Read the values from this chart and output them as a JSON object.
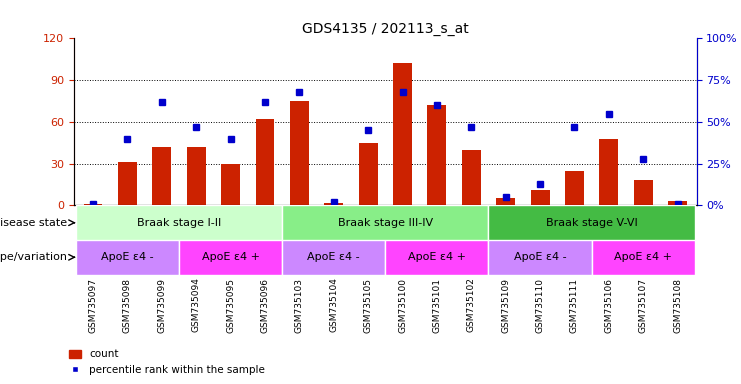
{
  "title": "GDS4135 / 202113_s_at",
  "samples": [
    "GSM735097",
    "GSM735098",
    "GSM735099",
    "GSM735094",
    "GSM735095",
    "GSM735096",
    "GSM735103",
    "GSM735104",
    "GSM735105",
    "GSM735100",
    "GSM735101",
    "GSM735102",
    "GSM735109",
    "GSM735110",
    "GSM735111",
    "GSM735106",
    "GSM735107",
    "GSM735108"
  ],
  "counts": [
    1,
    31,
    42,
    42,
    30,
    62,
    75,
    2,
    45,
    102,
    72,
    40,
    5,
    11,
    25,
    48,
    18,
    3
  ],
  "percentile": [
    1,
    40,
    62,
    47,
    40,
    62,
    68,
    2,
    45,
    68,
    60,
    47,
    5,
    13,
    47,
    55,
    28,
    1
  ],
  "ylim_left": [
    0,
    120
  ],
  "ylim_right": [
    0,
    100
  ],
  "yticks_left": [
    0,
    30,
    60,
    90,
    120
  ],
  "yticks_right": [
    0,
    25,
    50,
    75,
    100
  ],
  "bar_color": "#cc2200",
  "marker_color": "#0000cc",
  "disease_state_label": "disease state",
  "genotype_label": "genotype/variation",
  "disease_groups": [
    {
      "label": "Braak stage I-II",
      "start": 0,
      "end": 6,
      "color": "#ccffcc"
    },
    {
      "label": "Braak stage III-IV",
      "start": 6,
      "end": 12,
      "color": "#88ee88"
    },
    {
      "label": "Braak stage V-VI",
      "start": 12,
      "end": 18,
      "color": "#44bb44"
    }
  ],
  "genotype_groups": [
    {
      "label": "ApoE ε4 -",
      "start": 0,
      "end": 3,
      "color": "#cc88ff"
    },
    {
      "label": "ApoE ε4 +",
      "start": 3,
      "end": 6,
      "color": "#ff44ff"
    },
    {
      "label": "ApoE ε4 -",
      "start": 6,
      "end": 9,
      "color": "#cc88ff"
    },
    {
      "label": "ApoE ε4 +",
      "start": 9,
      "end": 12,
      "color": "#ff44ff"
    },
    {
      "label": "ApoE ε4 -",
      "start": 12,
      "end": 15,
      "color": "#cc88ff"
    },
    {
      "label": "ApoE ε4 +",
      "start": 15,
      "end": 18,
      "color": "#ff44ff"
    }
  ],
  "legend_items": [
    {
      "label": "count",
      "type": "bar",
      "color": "#cc2200"
    },
    {
      "label": "percentile rank within the sample",
      "type": "marker",
      "color": "#0000cc"
    }
  ]
}
